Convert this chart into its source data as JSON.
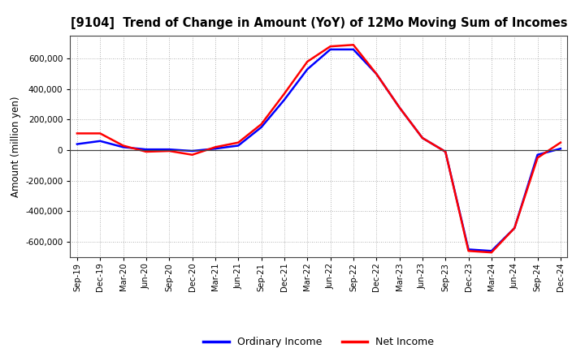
{
  "title": "[9104]  Trend of Change in Amount (YoY) of 12Mo Moving Sum of Incomes",
  "ylabel": "Amount (million yen)",
  "background_color": "#ffffff",
  "grid_color": "#999999",
  "tick_labels": [
    "Sep-19",
    "Dec-19",
    "Mar-20",
    "Jun-20",
    "Sep-20",
    "Dec-20",
    "Mar-21",
    "Jun-21",
    "Sep-21",
    "Dec-21",
    "Mar-22",
    "Jun-22",
    "Sep-22",
    "Dec-22",
    "Mar-23",
    "Jun-23",
    "Sep-23",
    "Dec-23",
    "Mar-24",
    "Jun-24",
    "Sep-24",
    "Dec-24"
  ],
  "ordinary_income": [
    40000,
    60000,
    20000,
    5000,
    5000,
    -5000,
    10000,
    30000,
    150000,
    330000,
    530000,
    660000,
    660000,
    500000,
    280000,
    80000,
    -10000,
    -650000,
    -660000,
    -510000,
    -30000,
    10000
  ],
  "net_income": [
    110000,
    110000,
    30000,
    -10000,
    -5000,
    -30000,
    20000,
    50000,
    170000,
    370000,
    580000,
    680000,
    690000,
    500000,
    280000,
    80000,
    -10000,
    -660000,
    -670000,
    -510000,
    -50000,
    50000
  ],
  "ordinary_color": "#0000ff",
  "net_color": "#ff0000",
  "ylim": [
    -700000,
    750000
  ],
  "yticks": [
    -600000,
    -400000,
    -200000,
    0,
    200000,
    400000,
    600000
  ],
  "line_width": 1.8,
  "legend_ordinary": "Ordinary Income",
  "legend_net": "Net Income"
}
